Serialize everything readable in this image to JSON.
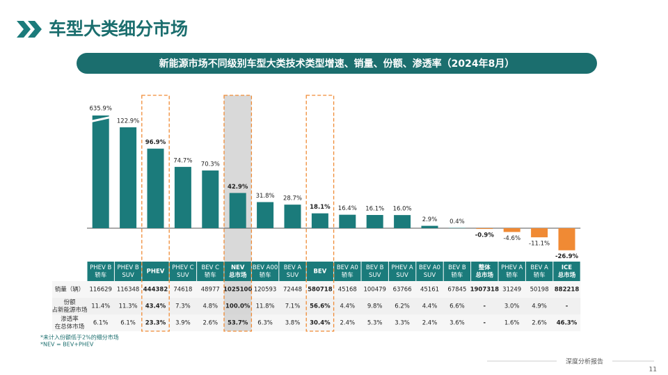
{
  "header": {
    "title": "车型大类细分市场",
    "subtitle": "新能源市场不同级别车型大类技术类型增速、销量、份额、渗透率（2024年8月）"
  },
  "chart_data": {
    "type": "bar",
    "categories": [
      [
        "PHEV B",
        "轿车"
      ],
      [
        "PHEV B",
        "SUV"
      ],
      [
        "PHEV"
      ],
      [
        "PHEV C",
        "SUV"
      ],
      [
        "BEV C",
        "轿车"
      ],
      [
        "NEV",
        "总市场"
      ],
      [
        "BEV A00",
        "轿车"
      ],
      [
        "BEV A",
        "SUV"
      ],
      [
        "BEV"
      ],
      [
        "BEV A0",
        "轿车"
      ],
      [
        "BEV B",
        "SUV"
      ],
      [
        "PHEV A",
        "SUV"
      ],
      [
        "BEV A0",
        "SUV"
      ],
      [
        "BEV B",
        "轿车"
      ],
      [
        "整体",
        "总市场"
      ],
      [
        "PHEV A",
        "轿车"
      ],
      [
        "BEV A",
        "轿车"
      ],
      [
        "ICE",
        "总市场"
      ]
    ],
    "values": [
      635.9,
      122.9,
      96.9,
      74.7,
      70.3,
      42.9,
      31.8,
      28.7,
      18.1,
      16.4,
      16.1,
      16.0,
      2.9,
      0.4,
      -0.9,
      -4.6,
      -11.1,
      -26.9
    ],
    "value_labels": [
      "635.9%",
      "122.9%",
      "96.9%",
      "74.7%",
      "70.3%",
      "42.9%",
      "31.8%",
      "28.7%",
      "18.1%",
      "16.4%",
      "16.1%",
      "16.0%",
      "2.9%",
      "0.4%",
      "-0.9%",
      "-4.6%",
      "-11.1%",
      "-26.9%"
    ],
    "color": "#1b7b7b",
    "negative_color": "#f08a34"
  },
  "table": {
    "rows": [
      {
        "label": [
          "销量（辆）"
        ],
        "cells": [
          "116629",
          "116348",
          "444382",
          "74618",
          "48977",
          "1025100",
          "120593",
          "72448",
          "580718",
          "45168",
          "100479",
          "63766",
          "45161",
          "67845",
          "1907318",
          "31249",
          "50198",
          "882218"
        ]
      },
      {
        "label": [
          "份额",
          "占新能源市场"
        ],
        "cells": [
          "11.4%",
          "11.3%",
          "43.4%",
          "7.3%",
          "4.8%",
          "100.0%",
          "11.8%",
          "7.1%",
          "56.6%",
          "4.4%",
          "9.8%",
          "6.2%",
          "4.4%",
          "6.6%",
          "-",
          "3.0%",
          "4.9%",
          "-"
        ]
      },
      {
        "label": [
          "渗透率",
          "在总体市场"
        ],
        "cells": [
          "6.1%",
          "6.1%",
          "23.3%",
          "3.9%",
          "2.6%",
          "53.7%",
          "6.3%",
          "3.8%",
          "30.4%",
          "2.4%",
          "5.3%",
          "3.3%",
          "2.4%",
          "3.6%",
          "-",
          "1.6%",
          "2.6%",
          "46.3%"
        ]
      }
    ]
  },
  "notes": [
    "*未计入份额低于2%的细分市场",
    "*NEV = BEV+PHEV"
  ],
  "footer": {
    "label": "深度分析报告",
    "page": "11"
  }
}
